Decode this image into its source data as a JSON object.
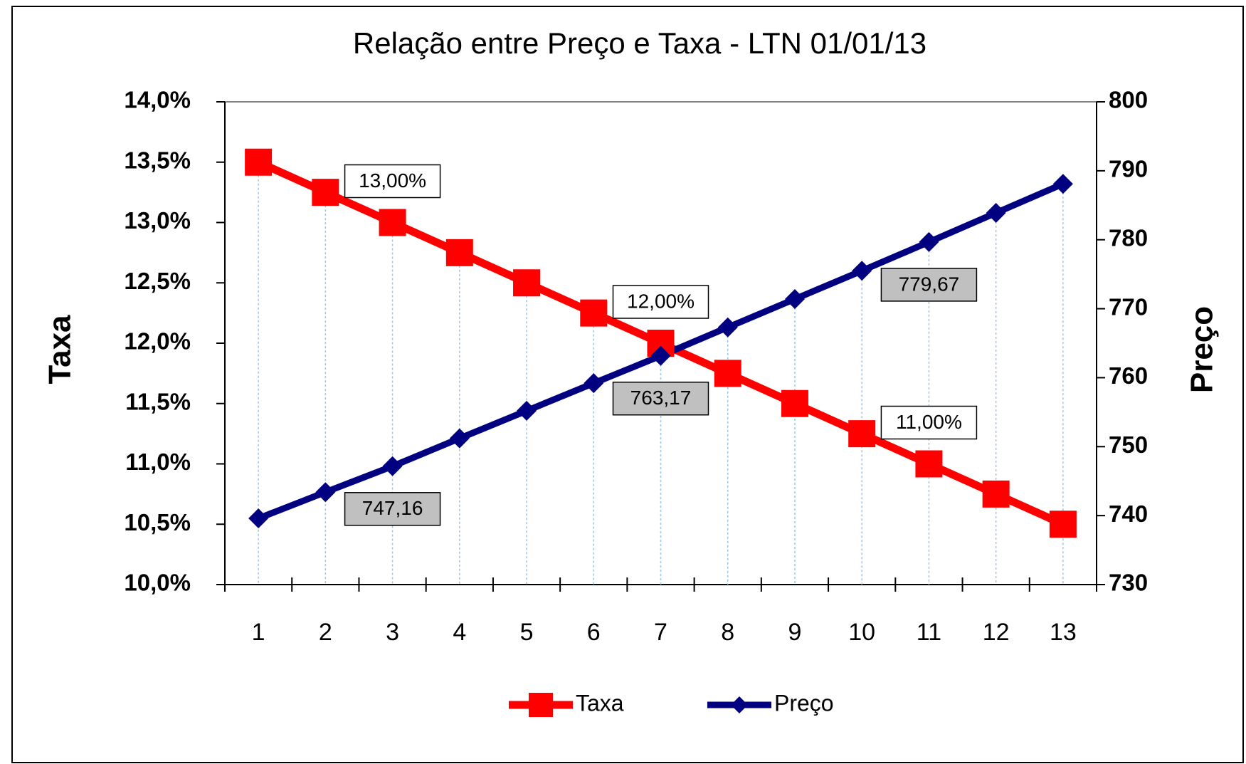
{
  "chart_data": {
    "type": "line",
    "title": "Relação entre Preço e Taxa - LTN 01/01/13",
    "y_label": "Taxa",
    "y2_label": "Preço",
    "categories": [
      "1",
      "2",
      "3",
      "4",
      "5",
      "6",
      "7",
      "8",
      "9",
      "10",
      "11",
      "12",
      "13"
    ],
    "series": [
      {
        "name": "Taxa",
        "color": "#ff0000",
        "marker": "square",
        "values": [
          13.5,
          13.25,
          13.0,
          12.75,
          12.5,
          12.25,
          12.0,
          11.75,
          11.5,
          11.25,
          11.0,
          10.75,
          10.5
        ],
        "value_labels": [
          null,
          null,
          "13,00%",
          null,
          null,
          null,
          "12,00%",
          null,
          null,
          null,
          "11,00%",
          null,
          null
        ]
      },
      {
        "name": "Preço",
        "color": "#000080",
        "marker": "diamond",
        "axis": "y2",
        "values": [
          739.6,
          743.4,
          747.16,
          751.2,
          755.2,
          759.2,
          763.17,
          767.3,
          771.4,
          775.5,
          779.67,
          783.9,
          788.1
        ],
        "value_labels": [
          null,
          null,
          "747,16",
          null,
          null,
          null,
          "763,17",
          null,
          null,
          null,
          "779,67",
          null,
          null
        ]
      }
    ],
    "ylim": [
      10,
      14
    ],
    "yticks": [
      {
        "value": 10,
        "label": "10,0%"
      },
      {
        "value": 10.5,
        "label": "10,5%"
      },
      {
        "value": 11,
        "label": "11,0%"
      },
      {
        "value": 11.5,
        "label": "11,5%"
      },
      {
        "value": 12,
        "label": "12,0%"
      },
      {
        "value": 12.5,
        "label": "12,5%"
      },
      {
        "value": 13,
        "label": "13,0%"
      },
      {
        "value": 13.5,
        "label": "13,5%"
      },
      {
        "value": 14,
        "label": "14,0%"
      }
    ],
    "y2lim": [
      730,
      800
    ],
    "y2ticks": [
      730,
      740,
      750,
      760,
      770,
      780,
      790,
      800
    ],
    "drop_lines": true,
    "legend": "bottom"
  }
}
